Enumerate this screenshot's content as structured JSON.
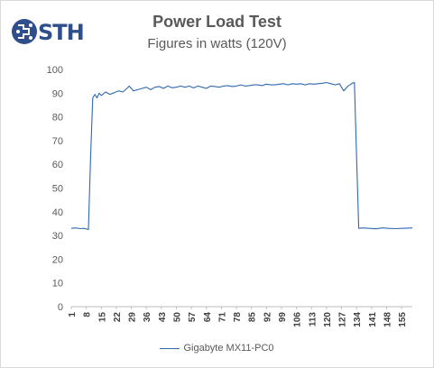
{
  "brand": {
    "logo_text": "STH"
  },
  "chart_data": {
    "type": "line",
    "title": "Power Load Test",
    "subtitle": "Figures in watts (120V)",
    "xlabel": "",
    "ylabel": "",
    "ylim": [
      0,
      100
    ],
    "y_ticks": [
      0,
      10,
      20,
      30,
      40,
      50,
      60,
      70,
      80,
      90,
      100
    ],
    "x_tick_labels": [
      "1",
      "8",
      "15",
      "22",
      "29",
      "36",
      "43",
      "50",
      "57",
      "64",
      "71",
      "78",
      "85",
      "92",
      "99",
      "106",
      "113",
      "120",
      "127",
      "134",
      "141",
      "148",
      "155"
    ],
    "grid": false,
    "legend_position": "bottom",
    "series": [
      {
        "name": "Gigabyte MX11-PC0",
        "color": "#2f69b0",
        "x": [
          1,
          3,
          5,
          7,
          9,
          10,
          11,
          12,
          13,
          14,
          15,
          17,
          19,
          21,
          23,
          25,
          27,
          28,
          30,
          32,
          34,
          36,
          38,
          40,
          42,
          44,
          46,
          48,
          50,
          52,
          54,
          56,
          58,
          60,
          62,
          64,
          66,
          68,
          70,
          72,
          74,
          76,
          78,
          80,
          82,
          84,
          86,
          88,
          90,
          92,
          94,
          96,
          98,
          100,
          102,
          104,
          106,
          108,
          110,
          112,
          114,
          116,
          118,
          120,
          122,
          124,
          126,
          128,
          130,
          132,
          133,
          134,
          135,
          137,
          140,
          143,
          146,
          149,
          152,
          155,
          158,
          160
        ],
        "values": [
          33,
          33.2,
          32.9,
          33,
          32.5,
          63,
          88,
          89.5,
          88,
          90,
          89,
          90.5,
          89.5,
          90.2,
          91,
          90.5,
          92,
          93,
          91,
          91.5,
          92,
          92.5,
          91.5,
          92.5,
          92.8,
          92,
          93,
          92.3,
          92.5,
          93,
          92.5,
          93,
          92.2,
          93,
          92.5,
          92,
          93,
          92.8,
          92.5,
          93,
          93.2,
          92.8,
          93,
          93.5,
          93,
          93.2,
          93.5,
          93.5,
          93.2,
          93.8,
          93.5,
          93.5,
          93.8,
          94,
          93.5,
          94,
          93.8,
          94,
          93.5,
          94,
          93.8,
          94,
          94.2,
          94.5,
          94,
          93.5,
          94,
          91,
          93,
          94.2,
          94.5,
          63,
          33,
          33.2,
          33,
          32.8,
          33.2,
          33,
          32.9,
          33,
          33.1,
          33.2
        ]
      }
    ]
  }
}
